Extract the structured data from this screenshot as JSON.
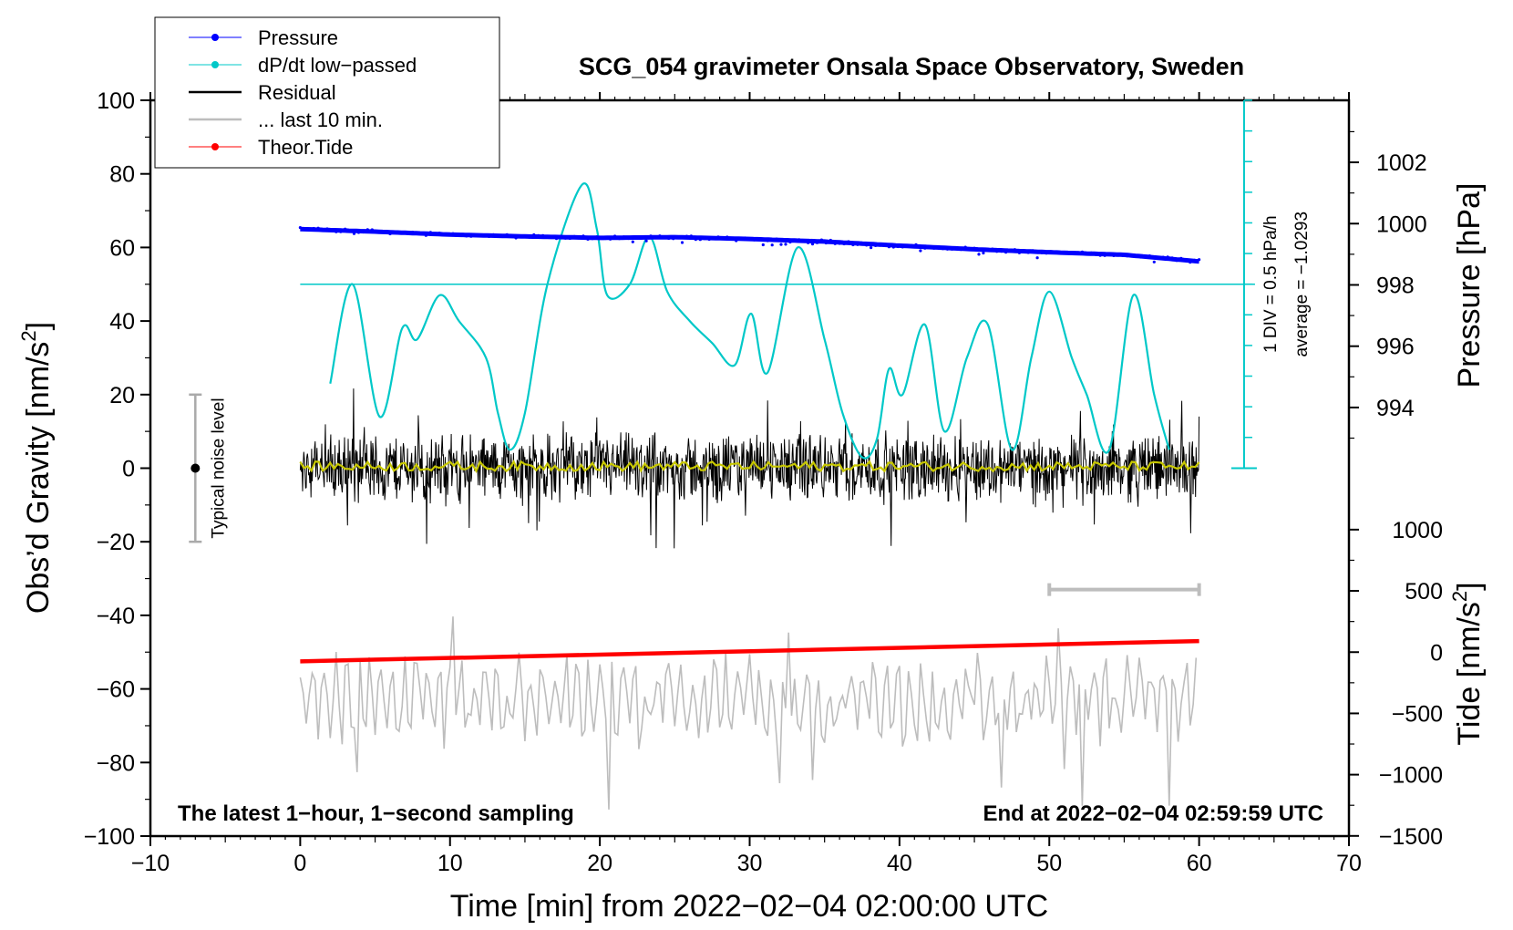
{
  "chart_data": {
    "type": "line",
    "title": "SCG_054 gravimeter Onsala Space Observatory, Sweden",
    "xlabel": "Time [min] from 2022−02−04 02:00:00 UTC",
    "ylabel": "Obs’d Gravity [nm/s",
    "ylabel_sup": "2",
    "ylabel_end": "]",
    "y2label_pressure": "Pressure [hPa]",
    "y2label_tide": "Tide [nm/s",
    "y2label_tide_sup": "2",
    "y2label_tide_end": "]",
    "xlim": [
      -10,
      70
    ],
    "ylim": [
      -100,
      100
    ],
    "x_ticks": [
      -10,
      0,
      10,
      20,
      30,
      40,
      50,
      60,
      70
    ],
    "x_tick_labels": [
      "−10",
      "0",
      "10",
      "20",
      "30",
      "40",
      "50",
      "60",
      "70"
    ],
    "y_ticks": [
      -100,
      -80,
      -60,
      -40,
      -20,
      0,
      20,
      40,
      60,
      80,
      100
    ],
    "y_tick_labels": [
      "−100",
      "−80",
      "−60",
      "−40",
      "−20",
      "0",
      "20",
      "40",
      "60",
      "80",
      "100"
    ],
    "pressure_axis": {
      "ticks": [
        994,
        996,
        998,
        1000,
        1002
      ],
      "tick_labels": [
        "994",
        "996",
        "998",
        "1000",
        "1002"
      ],
      "y_equiv_at_994": 16.5,
      "y_per_hpa": 8.33
    },
    "tide_axis": {
      "ticks": [
        -1500,
        -1000,
        -500,
        0,
        500,
        1000
      ],
      "tick_labels": [
        "−1500",
        "−1000",
        "−500",
        "0",
        "500",
        "1000"
      ],
      "y_equiv_at_zero": -50,
      "y_per_nm": 0.0333
    },
    "series": [
      {
        "name": "Pressure",
        "color": "#0000ff",
        "x": [
          0,
          5,
          10,
          15,
          20,
          25,
          30,
          35,
          40,
          45,
          50,
          55,
          60
        ],
        "values": [
          65,
          64.3,
          63.5,
          63.0,
          62.6,
          62.8,
          62.3,
          61.6,
          60.5,
          59.5,
          58.7,
          58.0,
          56.2
        ]
      },
      {
        "name": "dP/dt low−passed",
        "color": "#00c8c8",
        "x": [
          2,
          3.5,
          5.3,
          6.8,
          7.8,
          9.3,
          10.6,
          12.4,
          13.2,
          14,
          15,
          16.5,
          18.8,
          19.8,
          20.5,
          22,
          23.3,
          24.5,
          26,
          27.5,
          29,
          30.1,
          31.2,
          33.2,
          35,
          36.2,
          37.5,
          38.5,
          39.3,
          40.2,
          41.7,
          43,
          44.5,
          45.9,
          47.5,
          48.8,
          50,
          51.5,
          52.5,
          54,
          55.6,
          57,
          58
        ],
        "values": [
          23,
          50,
          14,
          38,
          35,
          47,
          40,
          30,
          15,
          5,
          15,
          50,
          77,
          65,
          47,
          50,
          63,
          48,
          40,
          34,
          28,
          42,
          26,
          60,
          35,
          15,
          3,
          8,
          27,
          20,
          39,
          10,
          30,
          39,
          5,
          30,
          48,
          30,
          20,
          5,
          47,
          20,
          5
        ]
      },
      {
        "name": "Residual",
        "color": "#000000",
        "x_range": [
          0,
          60
        ],
        "baseline": 0,
        "envelope": 11,
        "max_abs": 22
      },
      {
        "name": "... last 10 min.",
        "color": "#bdbdbd",
        "x_range": [
          0,
          60
        ],
        "baseline": -63,
        "envelope": 9,
        "max_abs": 30,
        "bracket_x": [
          50,
          60
        ],
        "bracket_y": -33
      },
      {
        "name": "Theor.Tide",
        "color": "#ff0000",
        "x": [
          0,
          60
        ],
        "values": [
          -52.5,
          -47
        ]
      },
      {
        "name": "Residual smoothed",
        "color": "#c8c800",
        "x_range": [
          0,
          60
        ],
        "baseline": 0.5
      }
    ],
    "dpdt_scale": {
      "x": 63,
      "y_top": 100,
      "y_bottom": 0,
      "zero_line_y": 50,
      "div_step": 8.33,
      "label1": "1 DIV = 0.5 hPa/h",
      "label2": "average = −1.0293"
    },
    "noise_bar": {
      "x": -7,
      "y_top": 20,
      "y_bottom": -20,
      "label": "Typical noise level"
    },
    "legend": {
      "placement": "top-left",
      "entries": [
        "Pressure",
        "dP/dt low−passed",
        "Residual",
        "... last 10 min.",
        "Theor.Tide"
      ]
    },
    "annotations": {
      "bottom_left": "The latest 1−hour, 1−second sampling",
      "bottom_right": "End at 2022−02−04 02:59:59 UTC"
    }
  }
}
